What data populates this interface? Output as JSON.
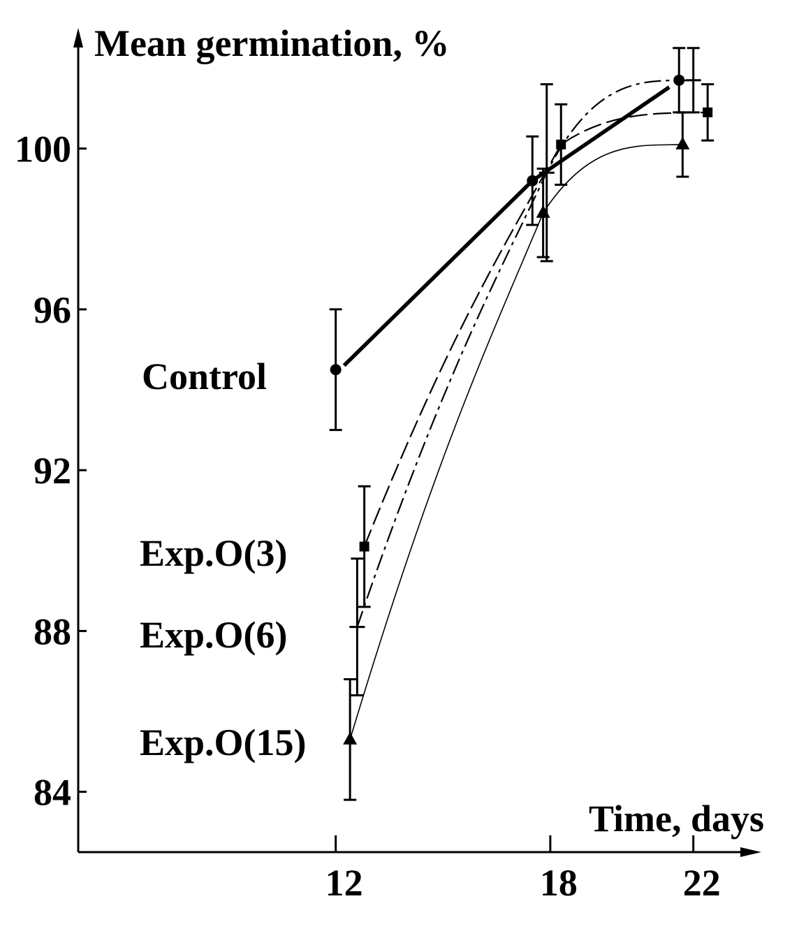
{
  "chart_data": {
    "type": "line",
    "ylabel": "Mean germination, %",
    "xlabel": "Time, days",
    "x_ticks": [
      12,
      18,
      22
    ],
    "y_ticks": [
      84,
      88,
      92,
      96,
      100
    ],
    "x_tick_labels": [
      "12",
      "18",
      "22"
    ],
    "y_tick_labels": [
      "84",
      "88",
      "92",
      "96",
      "100"
    ],
    "xlim": [
      4.8,
      23.9
    ],
    "ylim": [
      82.5,
      103.0
    ],
    "grid": false,
    "legend": "inline labels at left of curves",
    "series": [
      {
        "name": "Control",
        "marker": "circle",
        "line": "thick solid",
        "points": [
          {
            "x": 12.0,
            "y": 94.5,
            "err": 1.5
          },
          {
            "x": 17.5,
            "y": 99.2,
            "err": 1.1
          },
          {
            "x": 21.6,
            "y": 101.7,
            "err": 0.8
          }
        ]
      },
      {
        "name": "Exp.O(3)",
        "marker": "square",
        "line": "dashed",
        "points": [
          {
            "x": 12.8,
            "y": 90.1,
            "err": 1.5
          },
          {
            "x": 18.3,
            "y": 100.1,
            "err": 1.0
          },
          {
            "x": 22.4,
            "y": 100.9,
            "err": 0.7
          }
        ]
      },
      {
        "name": "Exp.O(6)",
        "marker": "plus",
        "line": "dash-dot",
        "points": [
          {
            "x": 12.6,
            "y": 88.1,
            "err": 1.7
          },
          {
            "x": 17.9,
            "y": 99.4,
            "err": 2.2
          },
          {
            "x": 22.0,
            "y": 101.7,
            "err": 0.8
          }
        ]
      },
      {
        "name": "Exp.O(15)",
        "marker": "triangle",
        "line": "thin solid",
        "points": [
          {
            "x": 12.4,
            "y": 85.3,
            "err": 1.5
          },
          {
            "x": 17.8,
            "y": 98.4,
            "err": 1.1
          },
          {
            "x": 21.7,
            "y": 100.1,
            "err": 0.8
          }
        ]
      }
    ]
  }
}
